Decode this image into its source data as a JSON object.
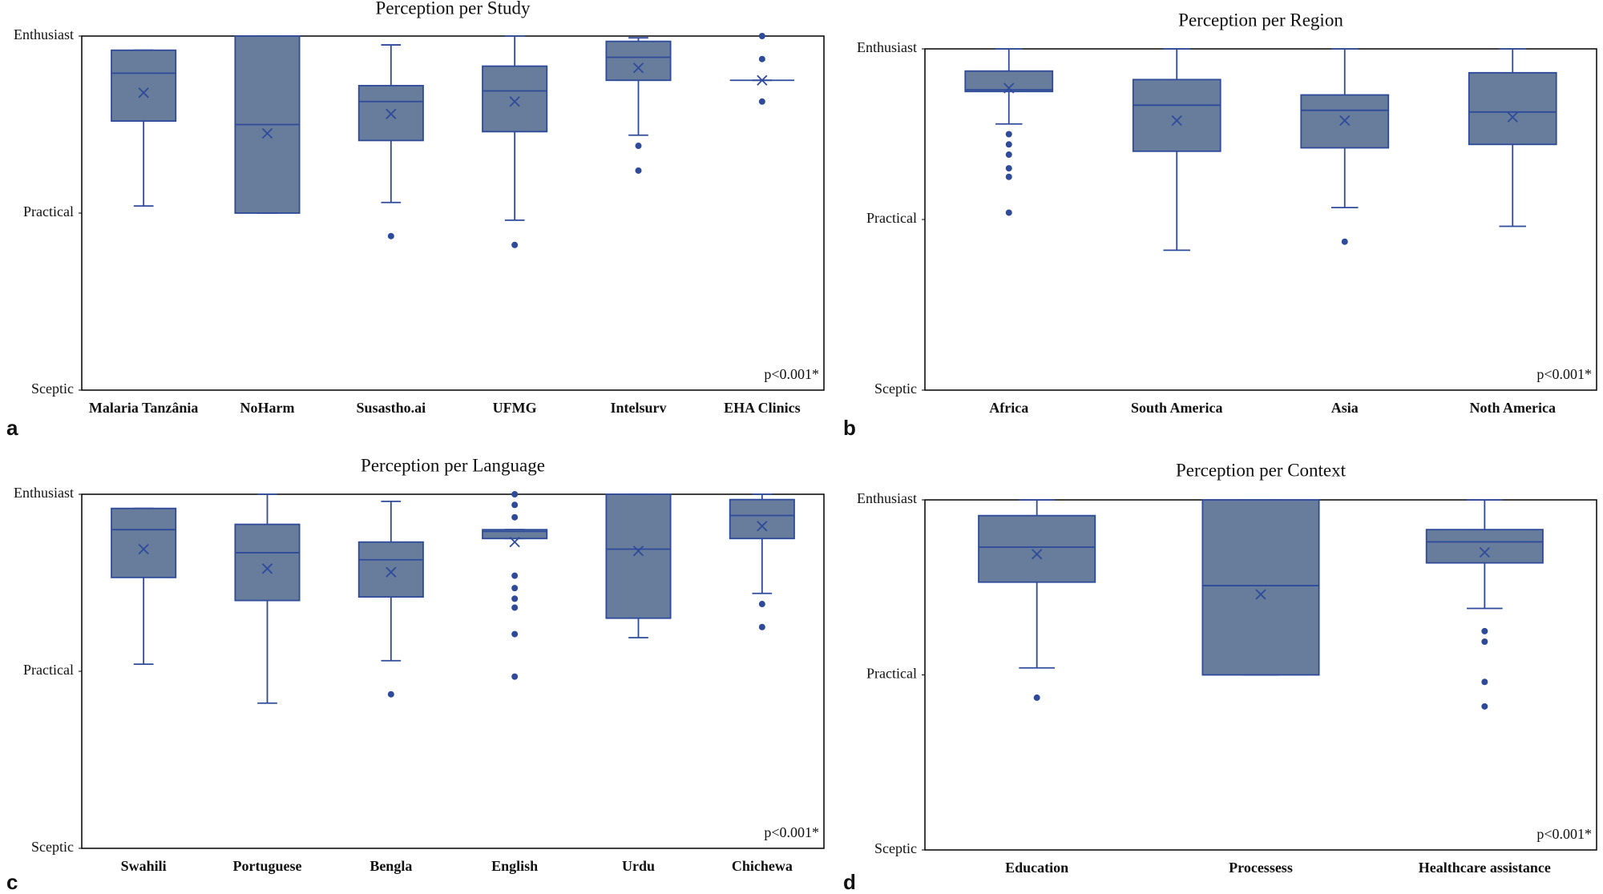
{
  "chart_data": [
    {
      "type": "box",
      "title": "Perception  per Study",
      "panel_label": "a",
      "annotation": "p<0.001*",
      "color": "#687d9c",
      "edge_color": "#2e4a9a",
      "ylim": [
        1,
        3
      ],
      "yticks": [
        {
          "value": 1,
          "label": "Sceptic"
        },
        {
          "value": 2,
          "label": "Practical"
        },
        {
          "value": 3,
          "label": "Enthusiast"
        }
      ],
      "categories": [
        "Malaria Tanzânia",
        "NoHarm",
        "Susastho.ai",
        "UFMG",
        "Intelsurv",
        "EHA Clinics"
      ],
      "boxes": [
        {
          "low": 2.04,
          "q1": 2.52,
          "median": 2.79,
          "q3": 2.92,
          "high": 2.92,
          "mean": 2.68,
          "outliers": []
        },
        {
          "low": 2.0,
          "q1": 2.0,
          "median": 2.5,
          "q3": 3,
          "high": 3,
          "mean": 2.45,
          "outliers": []
        },
        {
          "low": 2.06,
          "q1": 2.41,
          "median": 2.63,
          "q3": 2.72,
          "high": 2.95,
          "mean": 2.56,
          "outliers": [
            1.87
          ]
        },
        {
          "low": 1.96,
          "q1": 2.46,
          "median": 2.69,
          "q3": 2.83,
          "high": 3,
          "mean": 2.63,
          "outliers": [
            1.82
          ]
        },
        {
          "low": 2.44,
          "q1": 2.75,
          "median": 2.88,
          "q3": 2.97,
          "high": 2.99,
          "mean": 2.82,
          "outliers": [
            2.38,
            2.24
          ]
        },
        {
          "low": 2.75,
          "q1": 2.75,
          "median": 2.75,
          "q3": 2.75,
          "high": 2.75,
          "mean": 2.75,
          "outliers": [
            3,
            2.87,
            2.63
          ]
        }
      ]
    },
    {
      "type": "box",
      "title": "Perception  per Region",
      "panel_label": "b",
      "annotation": "p<0.001*",
      "color": "#687d9c",
      "edge_color": "#2e4a9a",
      "ylim": [
        1,
        3
      ],
      "yticks": [
        {
          "value": 1,
          "label": "Sceptic"
        },
        {
          "value": 2,
          "label": "Practical"
        },
        {
          "value": 3,
          "label": "Enthusiast"
        }
      ],
      "categories": [
        "Africa",
        "South America",
        "Asia",
        "Noth America"
      ],
      "boxes": [
        {
          "low": 2.56,
          "q1": 2.75,
          "median": 2.76,
          "q3": 2.87,
          "high": 3,
          "mean": 2.77,
          "outliers": [
            2.5,
            2.44,
            2.38,
            2.3,
            2.25,
            2.04
          ]
        },
        {
          "low": 1.82,
          "q1": 2.4,
          "median": 2.67,
          "q3": 2.82,
          "high": 3,
          "mean": 2.58,
          "outliers": []
        },
        {
          "low": 2.07,
          "q1": 2.42,
          "median": 2.64,
          "q3": 2.73,
          "high": 3,
          "mean": 2.58,
          "outliers": [
            1.87
          ]
        },
        {
          "low": 1.96,
          "q1": 2.44,
          "median": 2.63,
          "q3": 2.86,
          "high": 3,
          "mean": 2.6,
          "outliers": []
        }
      ]
    },
    {
      "type": "box",
      "title": "Perception  per Language",
      "panel_label": "c",
      "annotation": "p<0.001*",
      "color": "#687d9c",
      "edge_color": "#2e4a9a",
      "ylim": [
        1,
        3
      ],
      "yticks": [
        {
          "value": 1,
          "label": "Sceptic"
        },
        {
          "value": 2,
          "label": "Practical"
        },
        {
          "value": 3,
          "label": "Enthusiast"
        }
      ],
      "categories": [
        "Swahili",
        "Portuguese",
        "Bengla",
        "English",
        "Urdu",
        "Chichewa"
      ],
      "boxes": [
        {
          "low": 2.04,
          "q1": 2.53,
          "median": 2.8,
          "q3": 2.92,
          "high": 2.92,
          "mean": 2.69,
          "outliers": []
        },
        {
          "low": 1.82,
          "q1": 2.4,
          "median": 2.67,
          "q3": 2.83,
          "high": 3,
          "mean": 2.58,
          "outliers": []
        },
        {
          "low": 2.06,
          "q1": 2.42,
          "median": 2.63,
          "q3": 2.73,
          "high": 2.96,
          "mean": 2.56,
          "outliers": [
            1.87
          ]
        },
        {
          "low": 2.75,
          "q1": 2.75,
          "median": 2.79,
          "q3": 2.8,
          "high": 2.8,
          "mean": 2.73,
          "outliers": [
            3,
            2.94,
            2.87,
            2.54,
            2.47,
            2.41,
            2.36,
            2.21,
            1.97
          ]
        },
        {
          "low": 2.19,
          "q1": 2.3,
          "median": 2.69,
          "q3": 3,
          "high": 3,
          "mean": 2.68,
          "outliers": []
        },
        {
          "low": 2.44,
          "q1": 2.75,
          "median": 2.88,
          "q3": 2.97,
          "high": 3,
          "mean": 2.82,
          "outliers": [
            2.38,
            2.25
          ]
        }
      ]
    },
    {
      "type": "box",
      "title": "Perception  per Context",
      "panel_label": "d",
      "annotation": "p<0.001*",
      "color": "#687d9c",
      "edge_color": "#2e4a9a",
      "ylim": [
        1,
        3
      ],
      "yticks": [
        {
          "value": 1,
          "label": "Sceptic"
        },
        {
          "value": 2,
          "label": "Practical"
        },
        {
          "value": 3,
          "label": "Enthusiast"
        }
      ],
      "categories": [
        "Education",
        "Processess",
        "Healthcare assistance"
      ],
      "boxes": [
        {
          "low": 2.04,
          "q1": 2.53,
          "median": 2.73,
          "q3": 2.91,
          "high": 3,
          "mean": 2.69,
          "outliers": [
            1.87
          ]
        },
        {
          "low": 2.0,
          "q1": 2.0,
          "median": 2.51,
          "q3": 3,
          "high": 3,
          "mean": 2.46,
          "outliers": []
        },
        {
          "low": 2.38,
          "q1": 2.64,
          "median": 2.76,
          "q3": 2.83,
          "high": 3,
          "mean": 2.7,
          "outliers": [
            2.25,
            2.19,
            1.96,
            1.82
          ]
        }
      ]
    }
  ]
}
